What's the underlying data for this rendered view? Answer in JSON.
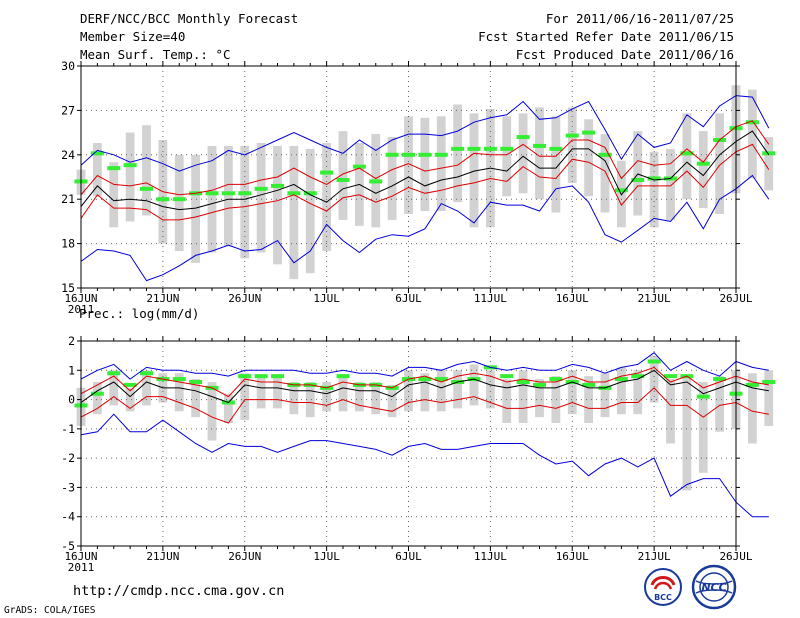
{
  "header": {
    "title": "DERF/NCC/BCC Monthly Forecast",
    "member_size": "Member Size=40",
    "variable": "Mean Surf. Temp.: °C",
    "period": "For 2011/06/16-2011/07/25",
    "refer_date": "Fcst Started Refer Date 2011/06/15",
    "produced_date": "Fcst Produced Date 2011/06/16"
  },
  "footer": {
    "url": "http://cmdp.ncc.cma.gov.cn",
    "credit": "GrADS: COLA/IGES",
    "logo_left_text": "BCC",
    "logo_right_text": "NCC"
  },
  "colors": {
    "mean": "#000000",
    "spread": "#dd0000",
    "extreme": "#0000dd",
    "box": "#d2d2d2",
    "median": "#33ee33"
  },
  "chart_data": [
    {
      "type": "line",
      "panel": "temperature",
      "title": "Mean Surf. Temp.: °C",
      "xlabel": "",
      "ylabel": "°C",
      "ylim": [
        15,
        30
      ],
      "yticks": [
        15,
        18,
        21,
        24,
        27,
        30
      ],
      "xlim": [
        0,
        40
      ],
      "xticks": [
        {
          "pos": 0,
          "label": "16JUN"
        },
        {
          "pos": 5,
          "label": "21JUN"
        },
        {
          "pos": 10,
          "label": "26JUN"
        },
        {
          "pos": 15,
          "label": "1JUL"
        },
        {
          "pos": 20,
          "label": "6JUL"
        },
        {
          "pos": 25,
          "label": "11JUL"
        },
        {
          "pos": 30,
          "label": "16JUL"
        },
        {
          "pos": 35,
          "label": "21JUL"
        },
        {
          "pos": 40,
          "label": "26JUL"
        }
      ],
      "year_label": "2011",
      "grid": true,
      "series": [
        {
          "name": "max",
          "color": "#0000dd",
          "values": [
            23.3,
            24.3,
            24.0,
            23.5,
            23.8,
            23.4,
            22.9,
            23.3,
            23.6,
            24.3,
            24.0,
            24.5,
            25.0,
            25.5,
            25.0,
            24.5,
            24.1,
            25.0,
            24.3,
            25.0,
            25.4,
            25.4,
            25.3,
            25.6,
            26.2,
            26.5,
            26.7,
            27.6,
            26.4,
            26.5,
            27.1,
            27.6,
            25.7,
            23.7,
            25.4,
            24.5,
            24.8,
            26.7,
            25.9,
            27.3,
            28.0,
            27.9,
            25.8
          ]
        },
        {
          "name": "upper",
          "color": "#dd0000",
          "values": [
            21.3,
            22.6,
            22.0,
            21.9,
            22.1,
            21.5,
            21.3,
            21.4,
            21.6,
            22.0,
            22.0,
            22.3,
            22.5,
            23.1,
            22.5,
            22.0,
            22.7,
            23.1,
            22.4,
            23.0,
            23.4,
            22.9,
            23.1,
            23.3,
            24.1,
            24.0,
            24.0,
            24.7,
            23.9,
            23.9,
            25.0,
            25.0,
            24.5,
            22.4,
            23.6,
            23.3,
            23.4,
            24.4,
            23.5,
            25.0,
            25.9,
            26.3,
            24.7
          ]
        },
        {
          "name": "mean",
          "color": "#000000",
          "values": [
            20.5,
            21.9,
            20.9,
            21.0,
            20.9,
            20.5,
            20.3,
            20.4,
            20.7,
            21.0,
            21.0,
            21.3,
            21.6,
            22.0,
            21.3,
            20.8,
            21.7,
            22.0,
            21.4,
            21.9,
            22.5,
            21.9,
            22.3,
            22.5,
            22.9,
            23.1,
            22.9,
            23.9,
            23.1,
            23.1,
            24.4,
            24.4,
            23.6,
            21.3,
            22.7,
            22.3,
            22.4,
            23.5,
            22.6,
            24.0,
            24.9,
            25.6,
            24.0
          ]
        },
        {
          "name": "lower",
          "color": "#dd0000",
          "values": [
            19.7,
            21.3,
            20.4,
            20.4,
            20.3,
            19.6,
            19.6,
            19.8,
            20.1,
            20.4,
            20.5,
            20.7,
            20.9,
            21.3,
            20.7,
            20.2,
            21.1,
            21.3,
            20.8,
            21.2,
            21.8,
            21.4,
            21.6,
            21.9,
            22.1,
            22.4,
            22.2,
            23.2,
            22.5,
            22.4,
            23.7,
            23.5,
            22.9,
            20.6,
            21.9,
            21.9,
            21.9,
            22.9,
            21.8,
            23.3,
            24.2,
            24.7,
            23.0
          ]
        },
        {
          "name": "min",
          "color": "#0000dd",
          "values": [
            16.8,
            17.6,
            17.5,
            17.2,
            15.5,
            15.9,
            16.5,
            17.2,
            17.5,
            17.9,
            17.5,
            17.6,
            18.2,
            16.7,
            17.5,
            19.3,
            18.2,
            17.4,
            18.3,
            18.6,
            18.5,
            19.0,
            20.7,
            20.2,
            19.4,
            20.8,
            20.6,
            20.6,
            20.2,
            21.7,
            21.9,
            20.8,
            18.6,
            18.1,
            18.9,
            19.7,
            19.5,
            20.8,
            19.0,
            21.0,
            21.7,
            22.6,
            21.0
          ]
        }
      ],
      "boxes": {
        "color": "#d2d2d2",
        "high": [
          23.0,
          24.8,
          23.5,
          25.5,
          26.0,
          25.0,
          24.0,
          24.0,
          24.6,
          24.6,
          24.6,
          24.8,
          24.6,
          24.6,
          24.4,
          24.8,
          25.6,
          24.8,
          25.4,
          25.2,
          26.6,
          26.5,
          26.6,
          27.4,
          26.8,
          27.1,
          26.6,
          26.8,
          27.2,
          26.6,
          27.2,
          26.4,
          25.4,
          23.6,
          25.6,
          24.2,
          24.4,
          26.8,
          25.6,
          26.8,
          28.7,
          28.4,
          25.2
        ],
        "low": [
          21.3,
          21.2,
          19.1,
          19.5,
          19.9,
          18.0,
          17.5,
          16.7,
          17.4,
          17.8,
          17.0,
          17.4,
          16.6,
          15.6,
          16.0,
          17.5,
          19.6,
          19.2,
          19.1,
          19.6,
          20.0,
          20.2,
          20.2,
          20.8,
          19.1,
          19.1,
          21.2,
          21.4,
          21.0,
          20.1,
          22.1,
          21.2,
          20.1,
          19.1,
          19.9,
          19.1,
          19.6,
          21.0,
          20.4,
          20.0,
          21.4,
          22.4,
          21.6
        ],
        "median": [
          22.2,
          24.1,
          23.1,
          23.3,
          21.7,
          21.0,
          21.0,
          21.4,
          21.4,
          21.4,
          21.4,
          21.7,
          21.9,
          21.4,
          21.4,
          22.8,
          22.3,
          23.2,
          22.2,
          24.0,
          24.0,
          24.0,
          24.0,
          24.4,
          24.4,
          24.4,
          24.4,
          25.2,
          24.6,
          24.4,
          25.3,
          25.5,
          24.0,
          21.6,
          22.3,
          22.4,
          22.4,
          24.1,
          23.4,
          25.0,
          25.8,
          26.2,
          24.1
        ]
      }
    },
    {
      "type": "line",
      "panel": "precipitation",
      "title": "Prec.: log(mm/d)",
      "xlabel": "",
      "ylabel": "log(mm/d)",
      "ylim": [
        -5,
        2
      ],
      "yticks": [
        -5,
        -4,
        -3,
        -2,
        -1,
        0,
        1,
        2
      ],
      "xlim": [
        0,
        40
      ],
      "xticks": [
        {
          "pos": 0,
          "label": "16JUN"
        },
        {
          "pos": 5,
          "label": "21JUN"
        },
        {
          "pos": 10,
          "label": "26JUN"
        },
        {
          "pos": 15,
          "label": "1JUL"
        },
        {
          "pos": 20,
          "label": "6JUL"
        },
        {
          "pos": 25,
          "label": "11JUL"
        },
        {
          "pos": 30,
          "label": "16JUL"
        },
        {
          "pos": 35,
          "label": "21JUL"
        },
        {
          "pos": 40,
          "label": "26JUL"
        }
      ],
      "year_label": "2011",
      "grid": true,
      "series": [
        {
          "name": "max",
          "color": "#0000dd",
          "values": [
            0.7,
            1.0,
            1.2,
            0.7,
            1.1,
            1.0,
            1.0,
            0.9,
            0.9,
            0.8,
            1.0,
            1.0,
            1.0,
            1.0,
            0.9,
            0.9,
            1.0,
            0.9,
            0.9,
            0.8,
            1.1,
            1.1,
            1.0,
            1.2,
            1.3,
            1.1,
            1.0,
            1.1,
            1.0,
            1.0,
            1.2,
            1.1,
            0.9,
            1.1,
            1.2,
            1.6,
            1.0,
            1.3,
            1.0,
            0.8,
            1.3,
            1.1,
            1.0
          ]
        },
        {
          "name": "upper",
          "color": "#dd0000",
          "values": [
            0.2,
            0.5,
            0.8,
            0.3,
            0.8,
            0.7,
            0.6,
            0.5,
            0.4,
            0.1,
            0.7,
            0.6,
            0.6,
            0.5,
            0.5,
            0.4,
            0.6,
            0.5,
            0.5,
            0.4,
            0.7,
            0.8,
            0.6,
            0.8,
            0.9,
            0.8,
            0.6,
            0.7,
            0.6,
            0.6,
            0.8,
            0.6,
            0.6,
            0.8,
            0.9,
            1.1,
            0.6,
            0.8,
            0.4,
            0.6,
            0.8,
            0.6,
            0.5
          ]
        },
        {
          "name": "mean",
          "color": "#000000",
          "values": [
            -0.1,
            0.3,
            0.6,
            0.1,
            0.6,
            0.4,
            0.4,
            0.3,
            0.1,
            -0.1,
            0.5,
            0.4,
            0.4,
            0.3,
            0.3,
            0.2,
            0.4,
            0.3,
            0.3,
            0.1,
            0.5,
            0.6,
            0.4,
            0.6,
            0.7,
            0.5,
            0.4,
            0.5,
            0.4,
            0.4,
            0.6,
            0.4,
            0.4,
            0.6,
            0.7,
            1.0,
            0.5,
            0.6,
            0.2,
            0.4,
            0.6,
            0.4,
            0.3
          ]
        },
        {
          "name": "lower",
          "color": "#dd0000",
          "values": [
            -0.6,
            -0.3,
            0.1,
            -0.3,
            0.1,
            0.1,
            -0.1,
            -0.3,
            -0.6,
            -0.8,
            0.0,
            0.0,
            0.0,
            -0.1,
            -0.1,
            -0.2,
            0.0,
            -0.2,
            -0.3,
            -0.4,
            -0.1,
            0.0,
            -0.1,
            0.0,
            0.1,
            -0.1,
            -0.3,
            -0.3,
            -0.2,
            -0.3,
            -0.1,
            -0.3,
            -0.3,
            -0.1,
            -0.1,
            0.4,
            -0.2,
            -0.2,
            -0.6,
            -0.2,
            -0.1,
            -0.4,
            -0.5
          ]
        },
        {
          "name": "min",
          "color": "#0000dd",
          "values": [
            -1.2,
            -1.1,
            -0.5,
            -1.1,
            -1.1,
            -0.7,
            -1.1,
            -1.5,
            -1.8,
            -1.5,
            -1.6,
            -1.6,
            -1.8,
            -1.6,
            -1.4,
            -1.4,
            -1.5,
            -1.6,
            -1.7,
            -1.9,
            -1.6,
            -1.5,
            -1.7,
            -1.7,
            -1.6,
            -1.5,
            -1.5,
            -1.5,
            -1.9,
            -2.2,
            -2.1,
            -2.6,
            -2.2,
            -2.0,
            -2.3,
            -2.0,
            -3.3,
            -2.9,
            -2.7,
            -2.7,
            -3.5,
            -4.0,
            -4.0
          ]
        }
      ],
      "boxes": {
        "color": "#d2d2d2",
        "high": [
          0.4,
          0.6,
          1.0,
          0.4,
          1.0,
          0.9,
          0.9,
          0.7,
          0.6,
          0.2,
          0.9,
          0.8,
          0.8,
          0.6,
          0.6,
          0.6,
          0.8,
          0.6,
          0.6,
          0.5,
          1.0,
          0.9,
          1.0,
          1.0,
          1.2,
          1.0,
          0.7,
          1.0,
          0.7,
          0.8,
          1.0,
          0.8,
          0.9,
          1.1,
          1.0,
          1.5,
          0.7,
          0.8,
          0.6,
          0.8,
          1.0,
          0.9,
          1.0
        ],
        "low": [
          -0.9,
          -0.5,
          -0.2,
          -0.4,
          -0.2,
          -0.1,
          -0.4,
          -0.6,
          -1.4,
          -0.8,
          -0.7,
          -0.3,
          -0.3,
          -0.5,
          -0.6,
          -0.4,
          -0.4,
          -0.4,
          -0.5,
          -0.6,
          -0.4,
          -0.4,
          -0.4,
          -0.3,
          -0.2,
          -0.3,
          -0.8,
          -0.8,
          -0.6,
          -0.8,
          -0.5,
          -0.8,
          -0.6,
          -0.5,
          -0.5,
          -0.1,
          -1.5,
          -3.1,
          -2.5,
          -1.1,
          -1.0,
          -1.5,
          -0.9
        ],
        "median": [
          -0.2,
          0.2,
          0.9,
          0.5,
          0.9,
          0.7,
          0.7,
          0.6,
          0.4,
          -0.1,
          0.8,
          0.8,
          0.8,
          0.5,
          0.5,
          0.4,
          0.8,
          0.5,
          0.5,
          0.4,
          0.7,
          0.7,
          0.7,
          0.6,
          0.7,
          1.1,
          0.8,
          0.6,
          0.5,
          0.7,
          0.6,
          0.5,
          0.4,
          0.7,
          0.8,
          1.3,
          0.8,
          0.8,
          0.1,
          0.7,
          0.2,
          0.5,
          0.6
        ]
      }
    }
  ]
}
